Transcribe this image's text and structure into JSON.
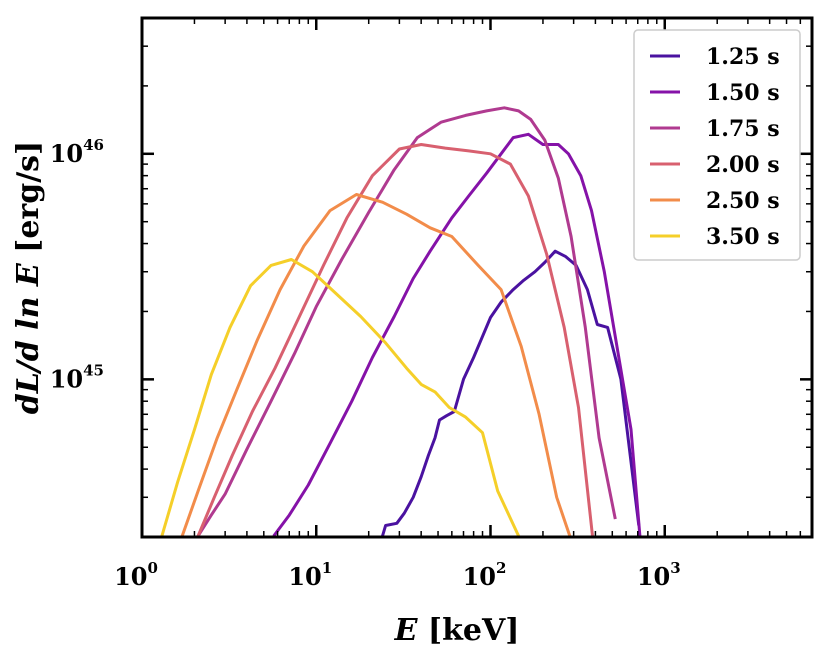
{
  "chart_data": {
    "type": "line",
    "xscale": "log",
    "yscale": "log",
    "xlabel": "E [keV]",
    "xlabel_var": "E",
    "xlabel_unit": "[keV]",
    "ylabel": "dL/d ln E [erg/s]",
    "ylabel_math": "dL/d ln E",
    "ylabel_unit": "[erg/s]",
    "xlim": [
      1,
      7000
    ],
    "ylim": [
      2e+44,
      4e+46
    ],
    "xticks": [
      {
        "value": 1,
        "base": "10",
        "exp": "0"
      },
      {
        "value": 10,
        "base": "10",
        "exp": "1"
      },
      {
        "value": 100,
        "base": "10",
        "exp": "2"
      },
      {
        "value": 1000,
        "base": "10",
        "exp": "3"
      }
    ],
    "yticks": [
      {
        "value": 1e+45,
        "base": "10",
        "exp": "45"
      },
      {
        "value": 1e+46,
        "base": "10",
        "exp": "46"
      }
    ],
    "legend_position": "top-right",
    "series": [
      {
        "name": "1.25 s",
        "color": "#4a12a0",
        "x": [
          24,
          25,
          29,
          32,
          36,
          40,
          44,
          48,
          51,
          56,
          62,
          70,
          80,
          90,
          100,
          115,
          135,
          155,
          180,
          205,
          235,
          270,
          310,
          360,
          410,
          470,
          560,
          710
        ],
        "y": [
          2.02e+44,
          2.25e+44,
          2.3e+44,
          2.55e+44,
          3e+44,
          3.7e+44,
          4.6e+44,
          5.5e+44,
          6.6e+44,
          6.9e+44,
          7.2e+44,
          1e+45,
          1.25e+45,
          1.55e+45,
          1.88e+45,
          2.2e+45,
          2.5e+45,
          2.75e+45,
          3e+45,
          3.3e+45,
          3.7e+45,
          3.5e+45,
          3.2e+45,
          2.5e+45,
          1.75e+45,
          1.7e+45,
          1e+45,
          2.25e+44
        ]
      },
      {
        "name": "1.50 s",
        "color": "#8512a8",
        "x": [
          5.7,
          7,
          9,
          12,
          16,
          21,
          28,
          36,
          45,
          60,
          75,
          95,
          115,
          135,
          165,
          200,
          245,
          280,
          330,
          380,
          450,
          550,
          640,
          720
        ],
        "y": [
          2.02e+44,
          2.5e+44,
          3.4e+44,
          5.2e+44,
          8e+44,
          1.25e+45,
          1.9e+45,
          2.8e+45,
          3.7e+45,
          5.2e+45,
          6.5e+45,
          8.2e+45,
          1e+46,
          1.18e+46,
          1.22e+46,
          1.1e+46,
          1.1e+46,
          1e+46,
          8e+45,
          5.6e+45,
          3e+45,
          1.2e+45,
          6e+44,
          2.02e+44
        ]
      },
      {
        "name": "1.75 s",
        "color": "#b03a90",
        "x": [
          2.1,
          2.5,
          3,
          4,
          5.5,
          7.5,
          10,
          14,
          20,
          28,
          38,
          52,
          72,
          95,
          120,
          145,
          170,
          205,
          245,
          290,
          350,
          420,
          520
        ],
        "y": [
          2.02e+44,
          2.5e+44,
          3.1e+44,
          4.9e+44,
          8e+44,
          1.3e+45,
          2.1e+45,
          3.4e+45,
          5.5e+45,
          8.5e+45,
          1.18e+46,
          1.38e+46,
          1.48e+46,
          1.55e+46,
          1.6e+46,
          1.55e+46,
          1.42e+46,
          1.15e+46,
          7.8e+45,
          4.3e+45,
          1.7e+45,
          5.5e+44,
          2.4e+44
        ]
      },
      {
        "name": "2.00 s",
        "color": "#d8606f",
        "x": [
          2.1,
          2.6,
          3.3,
          4.3,
          5.8,
          8,
          11,
          15,
          21,
          30,
          40,
          55,
          75,
          100,
          130,
          165,
          210,
          265,
          320,
          385
        ],
        "y": [
          2.02e+44,
          3e+44,
          4.6e+44,
          7.2e+44,
          1.12e+45,
          1.9e+45,
          3.2e+45,
          5.2e+45,
          8e+45,
          1.05e+46,
          1.1e+46,
          1.06e+46,
          1.03e+46,
          1e+46,
          9e+45,
          6.5e+45,
          3.6e+45,
          1.7e+45,
          7.5e+44,
          2.02e+44
        ]
      },
      {
        "name": "2.50 s",
        "color": "#f28c4a",
        "x": [
          1.7,
          2.1,
          2.7,
          3.5,
          4.6,
          6.2,
          8.5,
          12,
          17,
          24,
          33,
          45,
          60,
          85,
          115,
          150,
          190,
          240,
          285
        ],
        "y": [
          2.02e+44,
          3.2e+44,
          5.5e+44,
          9e+44,
          1.5e+45,
          2.5e+45,
          3.9e+45,
          5.6e+45,
          6.6e+45,
          6.1e+45,
          5.4e+45,
          4.7e+45,
          4.3e+45,
          3.2e+45,
          2.5e+45,
          1.4e+45,
          7e+44,
          3e+44,
          2.02e+44
        ]
      },
      {
        "name": "3.50 s",
        "color": "#f5cf29",
        "x": [
          1.3,
          1.6,
          2.0,
          2.5,
          3.2,
          4.2,
          5.5,
          7.2,
          9.5,
          13,
          18,
          25,
          33,
          40,
          48,
          58,
          72,
          90,
          110,
          145
        ],
        "y": [
          2.02e+44,
          3.5e+44,
          6e+44,
          1.05e+45,
          1.7e+45,
          2.6e+45,
          3.2e+45,
          3.4e+45,
          3e+45,
          2.4e+45,
          1.9e+45,
          1.45e+45,
          1.12e+45,
          9.5e+44,
          8.8e+44,
          7.5e+44,
          6.8e+44,
          5.8e+44,
          3.2e+44,
          2.02e+44
        ]
      }
    ]
  }
}
